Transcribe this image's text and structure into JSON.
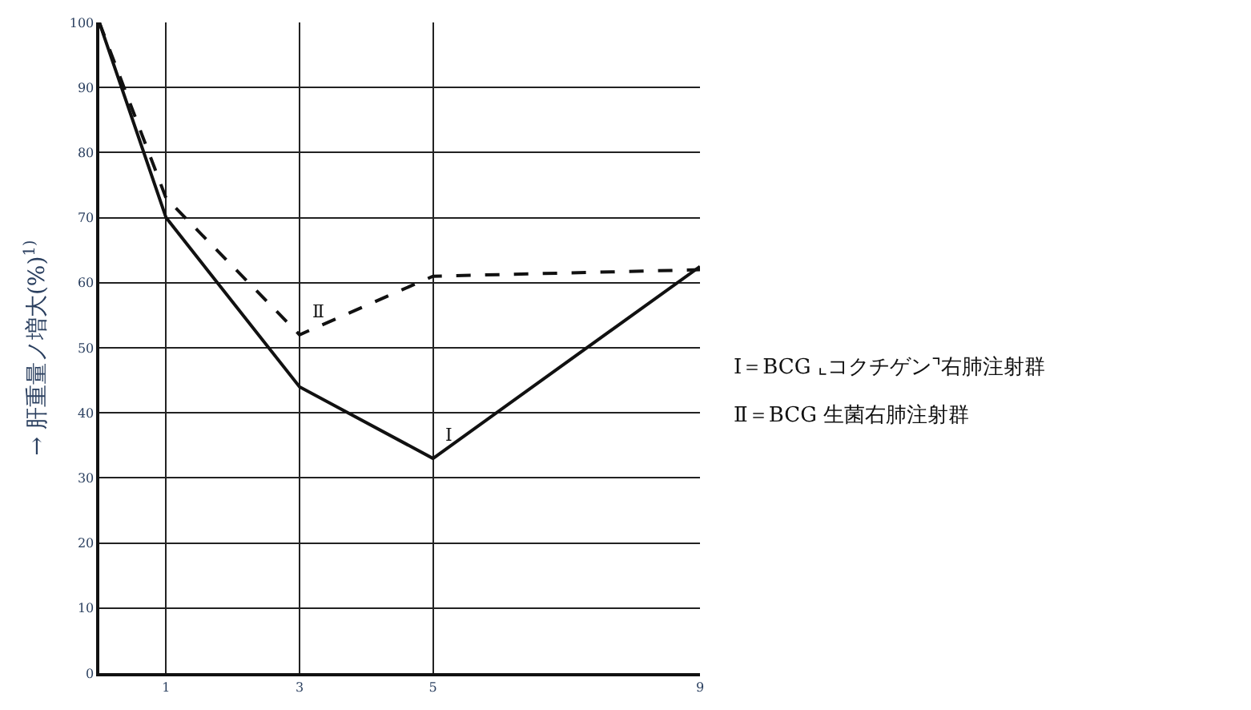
{
  "chart_data": {
    "type": "line",
    "ylabel": "→ 肝重量ノ増大(%)$^{1)}$",
    "x": [
      0,
      1,
      3,
      5,
      9
    ],
    "series": [
      {
        "name": "Ⅰ",
        "color": "#111111",
        "values": [
          100,
          70,
          44,
          33,
          62.5
        ],
        "line_style": "solid"
      },
      {
        "name": "Ⅱ",
        "color": "#111111",
        "values": [
          100,
          73,
          52,
          61,
          62
        ],
        "line_style": "dashed"
      }
    ],
    "annotations": [
      "Ⅰ＝BCG ⌞コクチゲン⌝右肺注射群",
      "Ⅱ＝BCG 生菌右肺注射群"
    ],
    "xlim": [
      0,
      9
    ],
    "xticks": [
      1,
      3,
      5,
      9
    ],
    "ylim": [
      0,
      100
    ],
    "yticks": [
      0,
      10,
      20,
      30,
      40,
      50,
      60,
      70,
      80,
      90,
      100
    ],
    "grid": true,
    "legend": false,
    "marker": "none"
  }
}
